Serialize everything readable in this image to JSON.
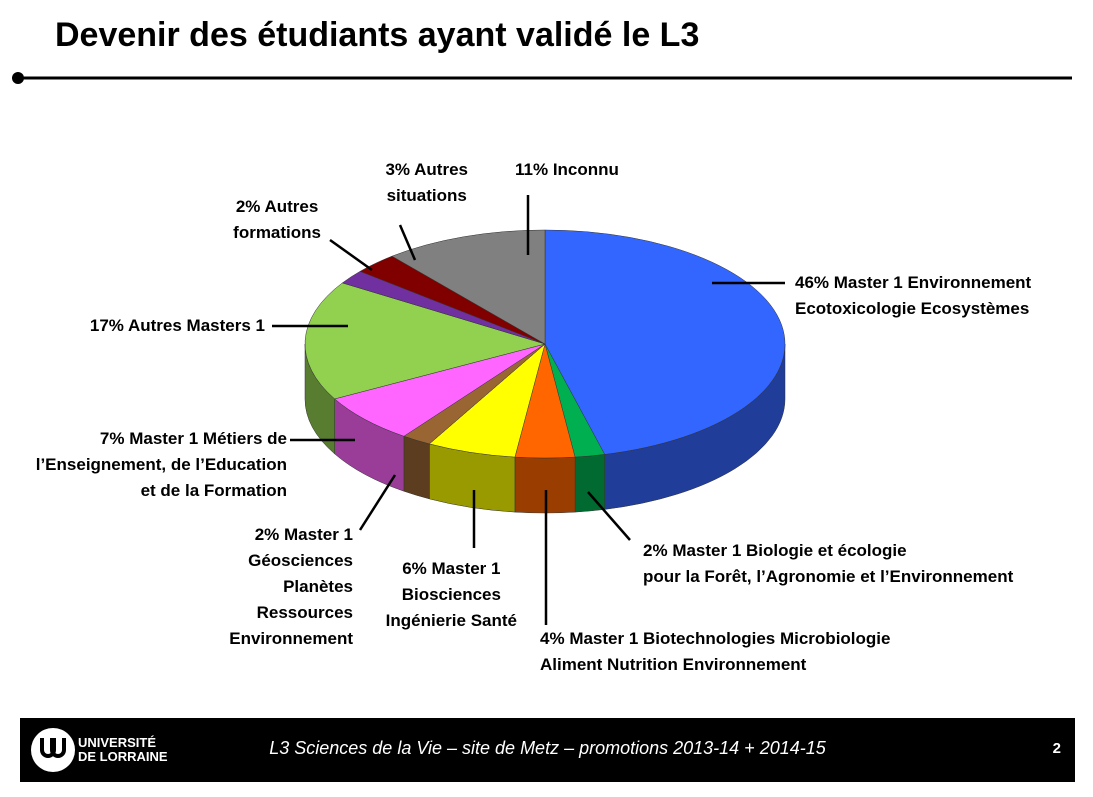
{
  "header": {
    "title": "Devenir des étudiants ayant validé le L3"
  },
  "chart_data": {
    "type": "pie",
    "categories": [
      "Master 1 Environnement\nEcotoxicologie Ecosystèmes",
      "Master 1 Biologie et écologie\npour la Forêt, l’Agronomie et l’Environnement",
      "Master 1 Biotechnologies Microbiologie\nAliment Nutrition Environnement",
      "Master 1\nBiosciences\nIngénierie Santé",
      "Master 1\nGéosciences\nPlanètes\nRessources\nEnvironnement",
      "Master 1 Métiers de\nl’Enseignement, de l’Education\net de la Formation",
      "Autres Masters 1",
      "Autres\nformations",
      "Autres\nsituations",
      "Inconnu"
    ],
    "values": [
      46,
      2,
      4,
      6,
      2,
      7,
      17,
      2,
      3,
      11
    ],
    "value_labels": [
      "46%",
      "2%",
      "4%",
      "6%",
      "2%",
      "7%",
      "17%",
      "2%",
      "3%",
      "11%"
    ],
    "colors": [
      "#3366ff",
      "#00b050",
      "#ff6600",
      "#ffff00",
      "#996633",
      "#ff66ff",
      "#92d050",
      "#7030a0",
      "#800000",
      "#808080"
    ]
  },
  "footer": {
    "logo_line1": "UNIVERSITÉ",
    "logo_line2": "DE LORRAINE",
    "caption": "L3 Sciences de la Vie – site de Metz – promotions 2013-14 + 2014-15",
    "page": "2"
  }
}
